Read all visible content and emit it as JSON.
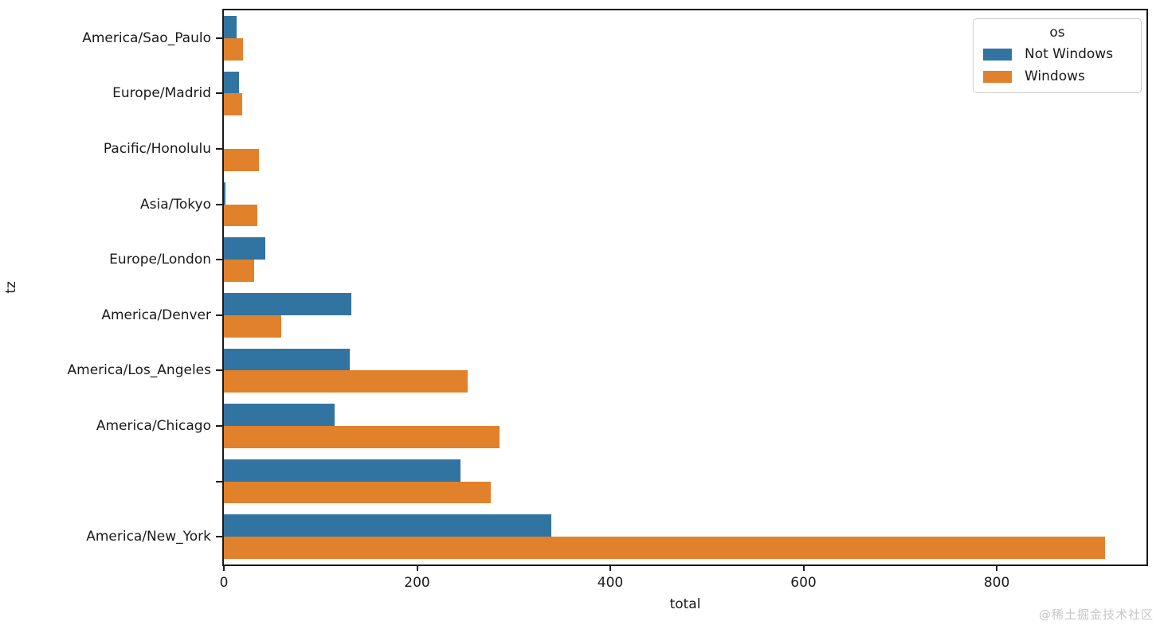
{
  "watermark": "@稀土掘金技术社区",
  "chart_data": {
    "type": "bar",
    "orientation": "horizontal",
    "title": "",
    "xlabel": "total",
    "ylabel": "tz",
    "xlim": [
      0,
      955
    ],
    "xticks": [
      0,
      200,
      400,
      600,
      800
    ],
    "grid": false,
    "categories": [
      "America/Sao_Paulo",
      "Europe/Madrid",
      "Pacific/Honolulu",
      "Asia/Tokyo",
      "Europe/London",
      "America/Denver",
      "America/Los_Angeles",
      "America/Chicago",
      "",
      "America/New_York"
    ],
    "series": [
      {
        "name": "Not Windows",
        "color": "#3274a1",
        "values": [
          13,
          16,
          0,
          2,
          43,
          132,
          130,
          115,
          245,
          339
        ]
      },
      {
        "name": "Windows",
        "color": "#e1812c",
        "values": [
          20,
          19,
          36,
          35,
          31,
          59,
          252,
          285,
          276,
          912
        ]
      }
    ],
    "legend": {
      "title": "os",
      "position": "upper-right"
    },
    "colors": {
      "spine": "#1a1a1a",
      "text": "#1a1a1a",
      "background": "#ffffff"
    }
  }
}
